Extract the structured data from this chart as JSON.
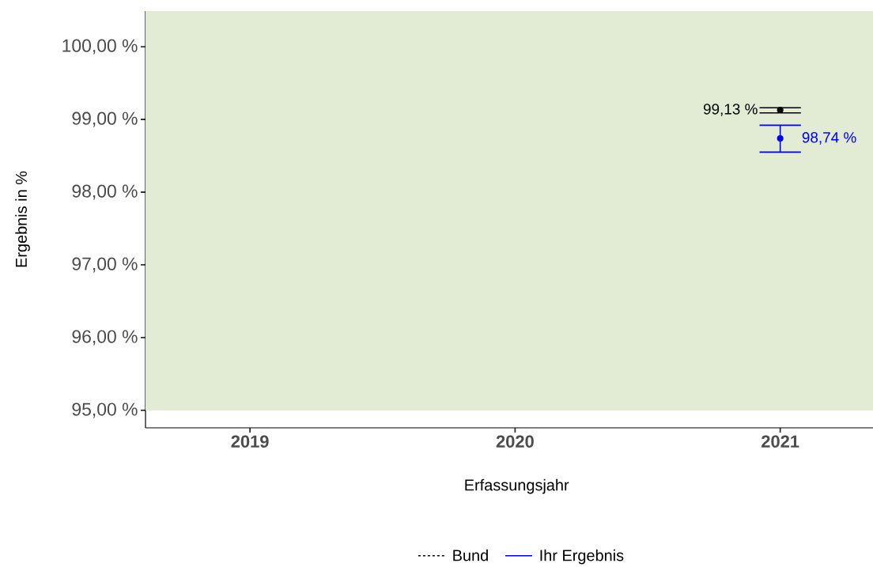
{
  "chart_data": {
    "type": "line",
    "xlabel": "Erfassungsjahr",
    "ylabel": "Ergebnis in %",
    "categories": [
      "2019",
      "2020",
      "2021"
    ],
    "series": [
      {
        "name": "Bund",
        "color": "#000000",
        "values": [
          null,
          null,
          99.13
        ],
        "errors": [
          null,
          null,
          [
            99.09,
            99.16
          ]
        ],
        "value_labels": [
          null,
          null,
          "99,13 %"
        ],
        "line_style": "dashed"
      },
      {
        "name": "Ihr Ergebnis",
        "color": "#0000ff",
        "values": [
          null,
          null,
          98.74
        ],
        "errors": [
          null,
          null,
          [
            98.55,
            98.92
          ]
        ],
        "value_labels": [
          null,
          null,
          "98,74 %"
        ],
        "line_style": "solid"
      }
    ],
    "ylim": [
      94.76,
      100.49
    ],
    "yticks": [
      {
        "value": 95,
        "label": "95,00 %"
      },
      {
        "value": 96,
        "label": "96,00 %"
      },
      {
        "value": 97,
        "label": "97,00 %"
      },
      {
        "value": 98,
        "label": "98,00 %"
      },
      {
        "value": 99,
        "label": "99,00 %"
      },
      {
        "value": 100,
        "label": "100,00 %"
      }
    ],
    "bands": [
      {
        "axis": "y",
        "from": 95,
        "to": 100.49,
        "color": "#e2ebd3"
      }
    ],
    "marker": "circle",
    "grid": false,
    "legend": "bottom"
  }
}
